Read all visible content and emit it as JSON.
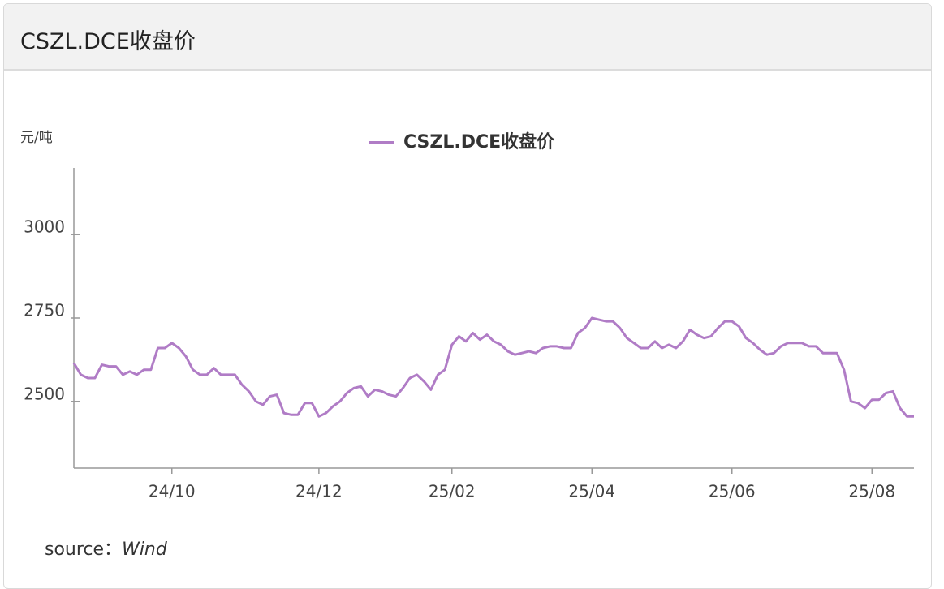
{
  "chart_data": {
    "type": "line",
    "title": "CSZL.DCE收盘价",
    "ylabel": "元/吨",
    "source": {
      "label": "source：",
      "value": "Wind"
    },
    "categories": [
      null,
      null,
      null,
      null,
      null,
      null,
      null,
      null,
      null,
      null,
      null,
      null,
      null,
      null,
      "24/10",
      null,
      null,
      null,
      null,
      null,
      null,
      null,
      null,
      null,
      null,
      null,
      null,
      null,
      null,
      null,
      null,
      null,
      null,
      null,
      null,
      "24/12",
      null,
      null,
      null,
      null,
      null,
      null,
      null,
      null,
      null,
      null,
      null,
      null,
      null,
      null,
      null,
      null,
      null,
      null,
      "25/02",
      null,
      null,
      null,
      null,
      null,
      null,
      null,
      null,
      null,
      null,
      null,
      null,
      null,
      null,
      null,
      null,
      null,
      null,
      null,
      "25/04",
      null,
      null,
      null,
      null,
      null,
      null,
      null,
      null,
      null,
      null,
      null,
      null,
      null,
      null,
      null,
      null,
      null,
      null,
      null,
      "25/06",
      null,
      null,
      null,
      null,
      null,
      null,
      null,
      null,
      null,
      null,
      null,
      null,
      null,
      null,
      null,
      null,
      null,
      null,
      null,
      "25/08",
      null,
      null,
      null,
      null,
      null,
      null
    ],
    "series": [
      {
        "name": "CSZL.DCE收盘价",
        "color": "#b07cc6",
        "values": [
          2615,
          2580,
          2570,
          2570,
          2610,
          2605,
          2605,
          2580,
          2590,
          2580,
          2595,
          2595,
          2660,
          2660,
          2675,
          2660,
          2635,
          2595,
          2580,
          2580,
          2600,
          2580,
          2580,
          2580,
          2550,
          2530,
          2500,
          2490,
          2515,
          2520,
          2465,
          2460,
          2460,
          2495,
          2495,
          2455,
          2465,
          2485,
          2500,
          2525,
          2540,
          2545,
          2515,
          2535,
          2530,
          2520,
          2515,
          2540,
          2570,
          2580,
          2560,
          2535,
          2580,
          2595,
          2670,
          2695,
          2680,
          2705,
          2685,
          2700,
          2680,
          2670,
          2650,
          2640,
          2645,
          2650,
          2645,
          2660,
          2665,
          2665,
          2660,
          2660,
          2705,
          2720,
          2750,
          2745,
          2740,
          2740,
          2720,
          2690,
          2675,
          2660,
          2660,
          2680,
          2660,
          2670,
          2660,
          2680,
          2715,
          2700,
          2690,
          2695,
          2720,
          2740,
          2740,
          2725,
          2690,
          2675,
          2655,
          2640,
          2645,
          2665,
          2675,
          2675,
          2675,
          2665,
          2665,
          2645,
          2645,
          2645,
          2595,
          2500,
          2495,
          2480,
          2505,
          2505,
          2525,
          2530,
          2480,
          2455,
          2455
        ]
      }
    ],
    "ylim": [
      2300,
      3200
    ],
    "yticks": [
      2500,
      2750,
      3000
    ]
  }
}
